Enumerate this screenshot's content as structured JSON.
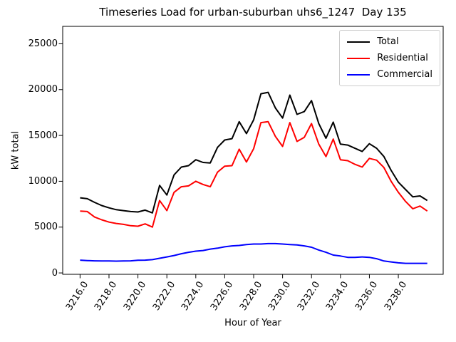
{
  "chart_data": {
    "type": "line",
    "title": "Timeseries Load for urban-suburban uhs6_1247  Day 135",
    "xlabel": "Hour of Year",
    "ylabel": "kW total",
    "grid": false,
    "legend_position": "upper right",
    "xlim": [
      3214.8,
      3241.1
    ],
    "ylim": [
      -150,
      26900
    ],
    "xticks": {
      "values": [
        3216,
        3218,
        3220,
        3222,
        3224,
        3226,
        3228,
        3230,
        3232,
        3234,
        3236,
        3238
      ],
      "labels": [
        "3216.0",
        "3218.0",
        "3220.0",
        "3222.0",
        "3224.0",
        "3226.0",
        "3228.0",
        "3230.0",
        "3232.0",
        "3234.0",
        "3236.0",
        "3238.0"
      ]
    },
    "yticks": {
      "values": [
        0,
        5000,
        10000,
        15000,
        20000,
        25000
      ],
      "labels": [
        "0",
        "5000",
        "10000",
        "15000",
        "20000",
        "25000"
      ]
    },
    "x": [
      3216,
      3216.5,
      3217,
      3217.5,
      3218,
      3218.5,
      3219,
      3219.5,
      3220,
      3220.5,
      3221,
      3221.5,
      3222,
      3222.5,
      3223,
      3223.5,
      3224,
      3224.5,
      3225,
      3225.5,
      3226,
      3226.5,
      3227,
      3227.5,
      3228,
      3228.5,
      3229,
      3229.5,
      3230,
      3230.5,
      3231,
      3231.5,
      3232,
      3232.5,
      3233,
      3233.5,
      3234,
      3234.5,
      3235,
      3235.5,
      3236,
      3236.5,
      3237,
      3237.5,
      3238,
      3238.5,
      3239,
      3239.5,
      3240
    ],
    "series": [
      {
        "name": "Total",
        "color": "#000000",
        "values": [
          8200,
          8100,
          7700,
          7350,
          7100,
          6900,
          6800,
          6700,
          6650,
          6850,
          6550,
          9550,
          8500,
          10700,
          11550,
          11700,
          12350,
          12050,
          12000,
          13700,
          14500,
          14650,
          16500,
          15200,
          16700,
          19550,
          19700,
          18000,
          16900,
          19400,
          17300,
          17600,
          18800,
          16300,
          14700,
          16450,
          14050,
          13950,
          13600,
          13250,
          14100,
          13600,
          12700,
          11200,
          9900,
          9100,
          8300,
          8400,
          7900
        ]
      },
      {
        "name": "Residential",
        "color": "#ff0000",
        "values": [
          6750,
          6700,
          6100,
          5800,
          5550,
          5400,
          5300,
          5150,
          5100,
          5350,
          5000,
          7900,
          6800,
          8800,
          9400,
          9500,
          10000,
          9650,
          9400,
          11000,
          11650,
          11700,
          13500,
          12100,
          13550,
          16400,
          16500,
          14900,
          13800,
          16400,
          14350,
          14800,
          16300,
          14050,
          12700,
          14600,
          12350,
          12250,
          11850,
          11550,
          12500,
          12300,
          11500,
          10000,
          8800,
          7800,
          7000,
          7300,
          6750
        ]
      },
      {
        "name": "Commercial",
        "color": "#0000ff",
        "values": [
          1400,
          1350,
          1320,
          1300,
          1300,
          1290,
          1300,
          1320,
          1380,
          1400,
          1450,
          1600,
          1750,
          1900,
          2100,
          2250,
          2380,
          2450,
          2600,
          2700,
          2850,
          2950,
          3000,
          3100,
          3150,
          3150,
          3200,
          3200,
          3150,
          3100,
          3050,
          2950,
          2800,
          2500,
          2250,
          1950,
          1850,
          1700,
          1700,
          1750,
          1700,
          1550,
          1300,
          1200,
          1100,
          1050,
          1050,
          1050,
          1050
        ]
      }
    ]
  }
}
